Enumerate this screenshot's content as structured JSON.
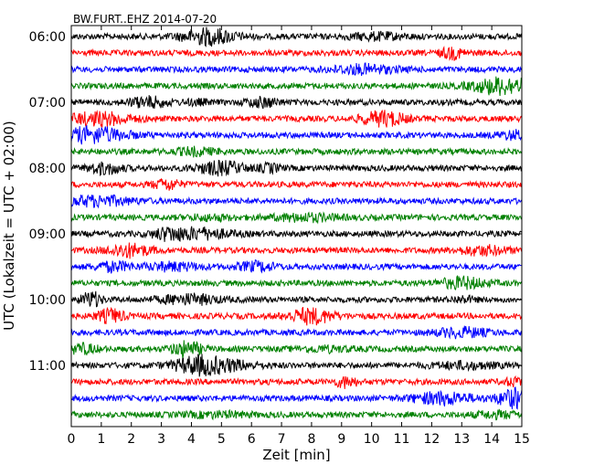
{
  "chart_data": {
    "type": "line",
    "title": "BW.FURT..EHZ 2014-07-20",
    "xlabel": "Zeit  [min]",
    "ylabel": "UTC (Lokalzeit = UTC + 02:00)",
    "xlim": [
      0,
      15
    ],
    "x_ticks": [
      "0",
      "1",
      "2",
      "3",
      "4",
      "5",
      "6",
      "7",
      "8",
      "9",
      "10",
      "11",
      "12",
      "13",
      "14",
      "15"
    ],
    "y_ticks": [
      "06:00",
      "07:00",
      "08:00",
      "09:00",
      "10:00",
      "11:00"
    ],
    "trace_start_times": [
      "06:00",
      "06:15",
      "06:30",
      "06:45",
      "07:00",
      "07:15",
      "07:30",
      "07:45",
      "08:00",
      "08:15",
      "08:30",
      "08:45",
      "09:00",
      "09:15",
      "09:30",
      "09:45",
      "10:00",
      "10:15",
      "10:30",
      "10:45",
      "11:00",
      "11:15",
      "11:30",
      "11:45"
    ],
    "trace_colors": [
      "#000000",
      "#ff0000",
      "#0000ff",
      "#008000"
    ],
    "grid": false,
    "legend": "none"
  }
}
